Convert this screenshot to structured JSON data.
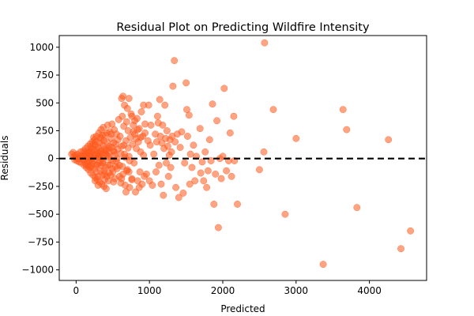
{
  "chart_data": {
    "type": "scatter",
    "title": "Residual Plot on Predicting Wildfire Intensity",
    "xlabel": "Predicted",
    "ylabel": "Residuals",
    "xlim": [
      -230,
      4780
    ],
    "ylim": [
      -1095,
      1105
    ],
    "xticks": [
      0,
      1000,
      2000,
      3000,
      4000
    ],
    "xtick_labels": [
      "0",
      "1000",
      "2000",
      "3000",
      "4000"
    ],
    "yticks": [
      -1000,
      -750,
      -500,
      -250,
      0,
      250,
      500,
      750,
      1000
    ],
    "ytick_labels": [
      "−1000",
      "−750",
      "−500",
      "−250",
      "0",
      "250",
      "500",
      "750",
      "1000"
    ],
    "reference_line": {
      "y": 0,
      "style": "dashed",
      "color": "#000000"
    },
    "grid": false,
    "legend": "none",
    "colors": {
      "point": "#ff5a1e"
    },
    "points": [
      [
        -60,
        40
      ],
      [
        -40,
        55
      ],
      [
        -30,
        20
      ],
      [
        -20,
        -10
      ],
      [
        -10,
        30
      ],
      [
        0,
        10
      ],
      [
        10,
        -20
      ],
      [
        20,
        40
      ],
      [
        30,
        0
      ],
      [
        40,
        -30
      ],
      [
        50,
        25
      ],
      [
        60,
        60
      ],
      [
        70,
        -40
      ],
      [
        80,
        15
      ],
      [
        90,
        -5
      ],
      [
        100,
        70
      ],
      [
        110,
        -60
      ],
      [
        120,
        35
      ],
      [
        130,
        90
      ],
      [
        140,
        -80
      ],
      [
        150,
        50
      ],
      [
        160,
        110
      ],
      [
        170,
        -100
      ],
      [
        180,
        20
      ],
      [
        190,
        130
      ],
      [
        200,
        -130
      ],
      [
        210,
        60
      ],
      [
        220,
        150
      ],
      [
        230,
        -150
      ],
      [
        240,
        80
      ],
      [
        250,
        170
      ],
      [
        260,
        -170
      ],
      [
        270,
        40
      ],
      [
        280,
        200
      ],
      [
        290,
        -190
      ],
      [
        300,
        100
      ],
      [
        310,
        230
      ],
      [
        320,
        -210
      ],
      [
        330,
        60
      ],
      [
        340,
        260
      ],
      [
        350,
        -230
      ],
      [
        360,
        120
      ],
      [
        370,
        280
      ],
      [
        380,
        -250
      ],
      [
        390,
        90
      ],
      [
        400,
        210
      ],
      [
        410,
        -270
      ],
      [
        420,
        150
      ],
      [
        430,
        300
      ],
      [
        440,
        -200
      ],
      [
        450,
        50
      ],
      [
        460,
        240
      ],
      [
        470,
        -150
      ],
      [
        480,
        180
      ],
      [
        490,
        310
      ],
      [
        500,
        -120
      ],
      [
        510,
        70
      ],
      [
        520,
        260
      ],
      [
        530,
        -180
      ],
      [
        540,
        130
      ],
      [
        550,
        220
      ],
      [
        560,
        -90
      ],
      [
        570,
        170
      ],
      [
        580,
        350
      ],
      [
        590,
        -60
      ],
      [
        600,
        200
      ],
      [
        610,
        -220
      ],
      [
        620,
        110
      ],
      [
        630,
        380
      ],
      [
        640,
        -140
      ],
      [
        650,
        290
      ],
      [
        660,
        40
      ],
      [
        670,
        -240
      ],
      [
        680,
        160
      ],
      [
        690,
        330
      ],
      [
        700,
        -100
      ],
      [
        710,
        250
      ],
      [
        720,
        20
      ],
      [
        730,
        -260
      ],
      [
        740,
        190
      ],
      [
        750,
        400
      ],
      [
        760,
        -180
      ],
      [
        770,
        130
      ],
      [
        780,
        300
      ],
      [
        790,
        -40
      ],
      [
        800,
        220
      ],
      [
        810,
        -300
      ],
      [
        820,
        90
      ],
      [
        830,
        360
      ],
      [
        840,
        -200
      ],
      [
        850,
        150
      ],
      [
        860,
        270
      ],
      [
        870,
        -120
      ],
      [
        880,
        60
      ],
      [
        890,
        420
      ],
      [
        900,
        -230
      ],
      [
        910,
        200
      ],
      [
        920,
        30
      ],
      [
        930,
        -160
      ],
      [
        940,
        310
      ],
      [
        150,
        -60
      ],
      [
        170,
        -30
      ],
      [
        190,
        10
      ],
      [
        210,
        -70
      ],
      [
        230,
        5
      ],
      [
        250,
        -90
      ],
      [
        270,
        25
      ],
      [
        290,
        -50
      ],
      [
        310,
        15
      ],
      [
        330,
        -110
      ],
      [
        350,
        45
      ],
      [
        370,
        -20
      ],
      [
        390,
        -140
      ],
      [
        410,
        75
      ],
      [
        430,
        -60
      ],
      [
        450,
        110
      ],
      [
        470,
        -10
      ],
      [
        490,
        -90
      ],
      [
        510,
        140
      ],
      [
        530,
        30
      ],
      [
        550,
        -30
      ],
      [
        570,
        85
      ],
      [
        590,
        -160
      ],
      [
        610,
        45
      ],
      [
        630,
        -70
      ],
      [
        650,
        120
      ],
      [
        670,
        10
      ],
      [
        690,
        -110
      ],
      [
        710,
        95
      ],
      [
        730,
        -20
      ],
      [
        260,
        120
      ],
      [
        280,
        -120
      ],
      [
        300,
        50
      ],
      [
        320,
        140
      ],
      [
        340,
        -60
      ],
      [
        360,
        -150
      ],
      [
        380,
        60
      ],
      [
        400,
        -80
      ],
      [
        420,
        30
      ],
      [
        440,
        90
      ],
      [
        200,
        100
      ],
      [
        220,
        -40
      ],
      [
        240,
        130
      ],
      [
        260,
        -200
      ],
      [
        280,
        80
      ],
      [
        300,
        -160
      ],
      [
        320,
        20
      ],
      [
        340,
        180
      ],
      [
        360,
        -40
      ],
      [
        380,
        160
      ],
      [
        180,
        60
      ],
      [
        200,
        -80
      ],
      [
        220,
        90
      ],
      [
        240,
        -20
      ],
      [
        260,
        30
      ],
      [
        280,
        -60
      ],
      [
        300,
        10
      ],
      [
        320,
        -40
      ],
      [
        340,
        70
      ],
      [
        360,
        0
      ],
      [
        380,
        -110
      ],
      [
        400,
        40
      ],
      [
        420,
        -160
      ],
      [
        440,
        20
      ],
      [
        460,
        -60
      ],
      [
        480,
        100
      ],
      [
        500,
        -20
      ],
      [
        520,
        60
      ],
      [
        540,
        -70
      ],
      [
        560,
        0
      ],
      [
        100,
        20
      ],
      [
        110,
        -15
      ],
      [
        120,
        60
      ],
      [
        130,
        -45
      ],
      [
        140,
        10
      ],
      [
        160,
        -25
      ],
      [
        170,
        55
      ],
      [
        180,
        -70
      ],
      [
        190,
        35
      ],
      [
        210,
        -10
      ],
      [
        240,
        190
      ],
      [
        270,
        150
      ],
      [
        300,
        -240
      ],
      [
        330,
        190
      ],
      [
        360,
        210
      ],
      [
        390,
        -190
      ],
      [
        420,
        230
      ],
      [
        450,
        -130
      ],
      [
        480,
        220
      ],
      [
        510,
        -210
      ],
      [
        620,
        540
      ],
      [
        640,
        560
      ],
      [
        660,
        480
      ],
      [
        700,
        450
      ],
      [
        720,
        540
      ],
      [
        760,
        380
      ],
      [
        800,
        340
      ],
      [
        620,
        -180
      ],
      [
        680,
        -300
      ],
      [
        720,
        -120
      ],
      [
        760,
        -190
      ],
      [
        780,
        240
      ],
      [
        820,
        180
      ],
      [
        840,
        260
      ],
      [
        860,
        -260
      ],
      [
        880,
        190
      ],
      [
        920,
        480
      ],
      [
        940,
        230
      ],
      [
        960,
        -140
      ],
      [
        980,
        160
      ],
      [
        990,
        480
      ],
      [
        1000,
        -200
      ],
      [
        1010,
        120
      ],
      [
        1020,
        300
      ],
      [
        1040,
        -240
      ],
      [
        1060,
        40
      ],
      [
        1080,
        220
      ],
      [
        1090,
        -120
      ],
      [
        1100,
        150
      ],
      [
        1110,
        380
      ],
      [
        1120,
        320
      ],
      [
        1130,
        -60
      ],
      [
        1140,
        530
      ],
      [
        1150,
        200
      ],
      [
        1160,
        -230
      ],
      [
        1170,
        140
      ],
      [
        1180,
        300
      ],
      [
        1190,
        -330
      ],
      [
        1200,
        90
      ],
      [
        1210,
        480
      ],
      [
        1220,
        180
      ],
      [
        1230,
        -40
      ],
      [
        1240,
        250
      ],
      [
        1250,
        110
      ],
      [
        1260,
        -160
      ],
      [
        1270,
        30
      ],
      [
        1280,
        170
      ],
      [
        1290,
        -80
      ],
      [
        1300,
        60
      ],
      [
        1310,
        200
      ],
      [
        1320,
        650
      ],
      [
        1340,
        880
      ],
      [
        1350,
        150
      ],
      [
        1360,
        -260
      ],
      [
        1380,
        220
      ],
      [
        1400,
        -350
      ],
      [
        1420,
        100
      ],
      [
        1440,
        240
      ],
      [
        1460,
        -310
      ],
      [
        1480,
        -40
      ],
      [
        1500,
        680
      ],
      [
        1510,
        440
      ],
      [
        1520,
        200
      ],
      [
        1540,
        390
      ],
      [
        1550,
        -230
      ],
      [
        1560,
        40
      ],
      [
        1580,
        -80
      ],
      [
        1600,
        120
      ],
      [
        1620,
        -200
      ],
      [
        1640,
        20
      ],
      [
        1690,
        270
      ],
      [
        1700,
        -130
      ],
      [
        1720,
        -30
      ],
      [
        1740,
        -200
      ],
      [
        1760,
        60
      ],
      [
        1780,
        -260
      ],
      [
        1800,
        -110
      ],
      [
        1820,
        170
      ],
      [
        1840,
        -20
      ],
      [
        1860,
        490
      ],
      [
        1880,
        -410
      ],
      [
        1900,
        -140
      ],
      [
        1920,
        340
      ],
      [
        1940,
        -620
      ],
      [
        1960,
        0
      ],
      [
        1980,
        -180
      ],
      [
        2000,
        20
      ],
      [
        2020,
        630
      ],
      [
        2050,
        -110
      ],
      [
        2080,
        -20
      ],
      [
        2100,
        230
      ],
      [
        2120,
        -160
      ],
      [
        2150,
        380
      ],
      [
        2160,
        -20
      ],
      [
        2200,
        -410
      ],
      [
        2500,
        -100
      ],
      [
        2560,
        60
      ],
      [
        2570,
        1040
      ],
      [
        2690,
        440
      ],
      [
        2850,
        -500
      ],
      [
        3000,
        180
      ],
      [
        3370,
        -950
      ],
      [
        3640,
        440
      ],
      [
        3690,
        260
      ],
      [
        3830,
        -440
      ],
      [
        4260,
        170
      ],
      [
        4430,
        -810
      ],
      [
        4560,
        -650
      ]
    ]
  }
}
